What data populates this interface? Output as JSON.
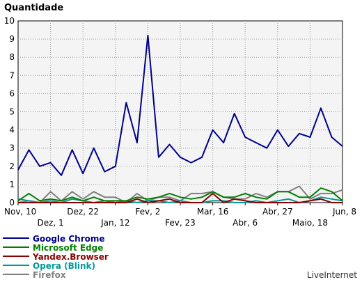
{
  "chart_data": {
    "type": "line",
    "title": "Quantidade",
    "ylim": [
      0,
      10
    ],
    "yticks": [
      "0",
      "1",
      "2",
      "3",
      "4",
      "5",
      "6",
      "7",
      "8",
      "9",
      "10"
    ],
    "grid": true,
    "legend_position": "bottom-left",
    "x_tick_labels": [
      {
        "index": 0,
        "label": "Nov, 10",
        "row": 1
      },
      {
        "index": 3,
        "label": "Dez, 1",
        "row": 2
      },
      {
        "index": 6,
        "label": "Dez, 22",
        "row": 1
      },
      {
        "index": 9,
        "label": "Jan, 12",
        "row": 2
      },
      {
        "index": 12,
        "label": "Fev, 2",
        "row": 1
      },
      {
        "index": 15,
        "label": "Fev, 23",
        "row": 2
      },
      {
        "index": 18,
        "label": "Mar, 16",
        "row": 1
      },
      {
        "index": 21,
        "label": "Abr, 6",
        "row": 2
      },
      {
        "index": 24,
        "label": "Abr, 27",
        "row": 1
      },
      {
        "index": 27,
        "label": "Maio, 18",
        "row": 2
      },
      {
        "index": 30,
        "label": "Jun, 8",
        "row": 1
      }
    ],
    "series": [
      {
        "name": "Google Chrome",
        "color": "#00008b",
        "values": [
          1.8,
          2.9,
          2.0,
          2.2,
          1.5,
          2.9,
          1.6,
          3.0,
          1.7,
          2.0,
          5.5,
          3.3,
          9.2,
          2.5,
          3.2,
          2.5,
          2.2,
          2.5,
          4.0,
          3.3,
          4.9,
          3.6,
          3.3,
          3.0,
          4.0,
          3.1,
          3.8,
          3.6,
          5.2,
          3.6,
          3.1
        ]
      },
      {
        "name": "Microsoft Edge",
        "color": "#008000",
        "values": [
          0.1,
          0.5,
          0.1,
          0.2,
          0.1,
          0.3,
          0.1,
          0.3,
          0.1,
          0.1,
          0.1,
          0.3,
          0.2,
          0.3,
          0.5,
          0.3,
          0.2,
          0.3,
          0.6,
          0.3,
          0.3,
          0.5,
          0.3,
          0.2,
          0.6,
          0.6,
          0.3,
          0.3,
          0.8,
          0.6,
          0.1
        ]
      },
      {
        "name": "Yandex.Browser",
        "color": "#8b0000",
        "values": [
          0.0,
          0.0,
          0.0,
          0.0,
          0.0,
          0.0,
          0.0,
          0.0,
          0.0,
          0.0,
          0.0,
          0.2,
          0.0,
          0.1,
          0.2,
          0.0,
          0.0,
          0.0,
          0.5,
          0.0,
          0.2,
          0.1,
          0.0,
          0.0,
          0.0,
          0.0,
          0.0,
          0.1,
          0.2,
          0.0,
          0.0
        ]
      },
      {
        "name": "Opera (Blink)",
        "color": "#009999",
        "values": [
          0.2,
          0.1,
          0.0,
          0.1,
          0.0,
          0.2,
          0.1,
          0.0,
          0.1,
          0.0,
          0.1,
          0.0,
          0.1,
          0.1,
          0.0,
          0.1,
          0.0,
          0.0,
          0.1,
          0.1,
          0.0,
          0.0,
          0.1,
          0.0,
          0.1,
          0.2,
          0.0,
          0.1,
          0.3,
          0.2,
          0.1
        ]
      },
      {
        "name": "Firefox",
        "color": "#808080",
        "values": [
          0.0,
          0.1,
          0.0,
          0.6,
          0.1,
          0.6,
          0.2,
          0.6,
          0.3,
          0.3,
          0.0,
          0.5,
          0.1,
          0.3,
          0.3,
          0.1,
          0.5,
          0.5,
          0.6,
          0.3,
          0.2,
          0.2,
          0.5,
          0.3,
          0.6,
          0.6,
          0.9,
          0.2,
          0.5,
          0.5,
          0.7
        ]
      }
    ]
  },
  "branding": {
    "label": "LiveInternet"
  }
}
